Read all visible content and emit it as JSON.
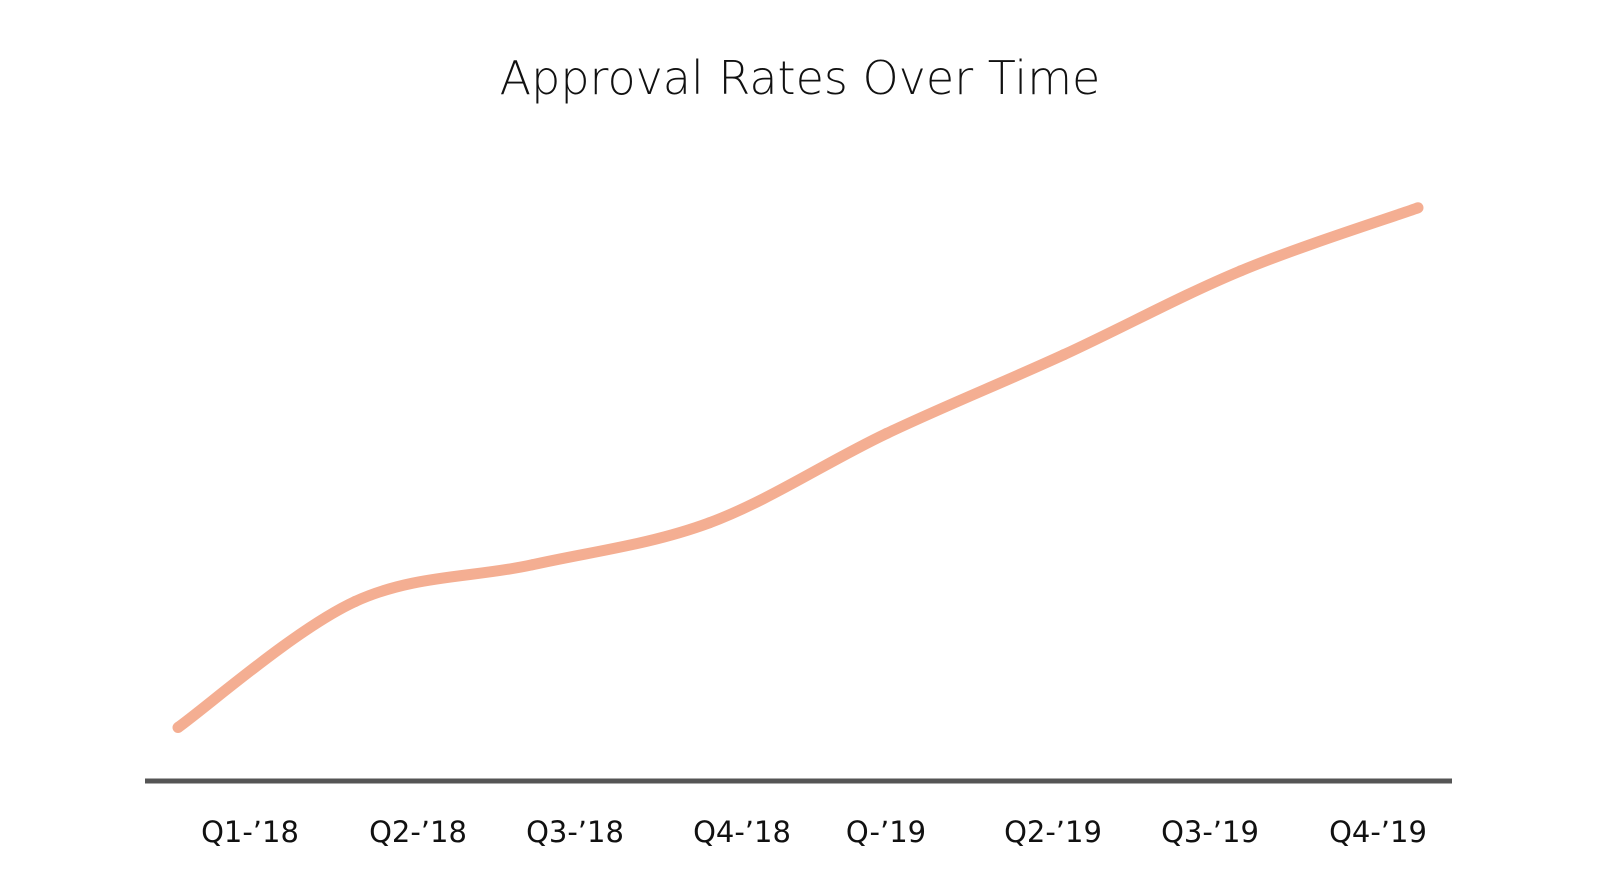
{
  "chart_data": {
    "type": "line",
    "title": "Approval Rates Over Time",
    "xlabel": "",
    "ylabel": "",
    "categories": [
      "Q1-’18",
      "Q2-’18",
      "Q3-’18",
      "Q4-’18",
      "Q-’19",
      "Q2-’19",
      "Q3-’19",
      "Q4-’19"
    ],
    "series": [
      {
        "name": "Approval Rate",
        "values": [
          10,
          34,
          41,
          49,
          66,
          81,
          97,
          109
        ]
      }
    ],
    "ylim": [
      0,
      120
    ],
    "grid": false,
    "legend": "none",
    "color": "#f4ae92",
    "axis_color": "#555555"
  }
}
